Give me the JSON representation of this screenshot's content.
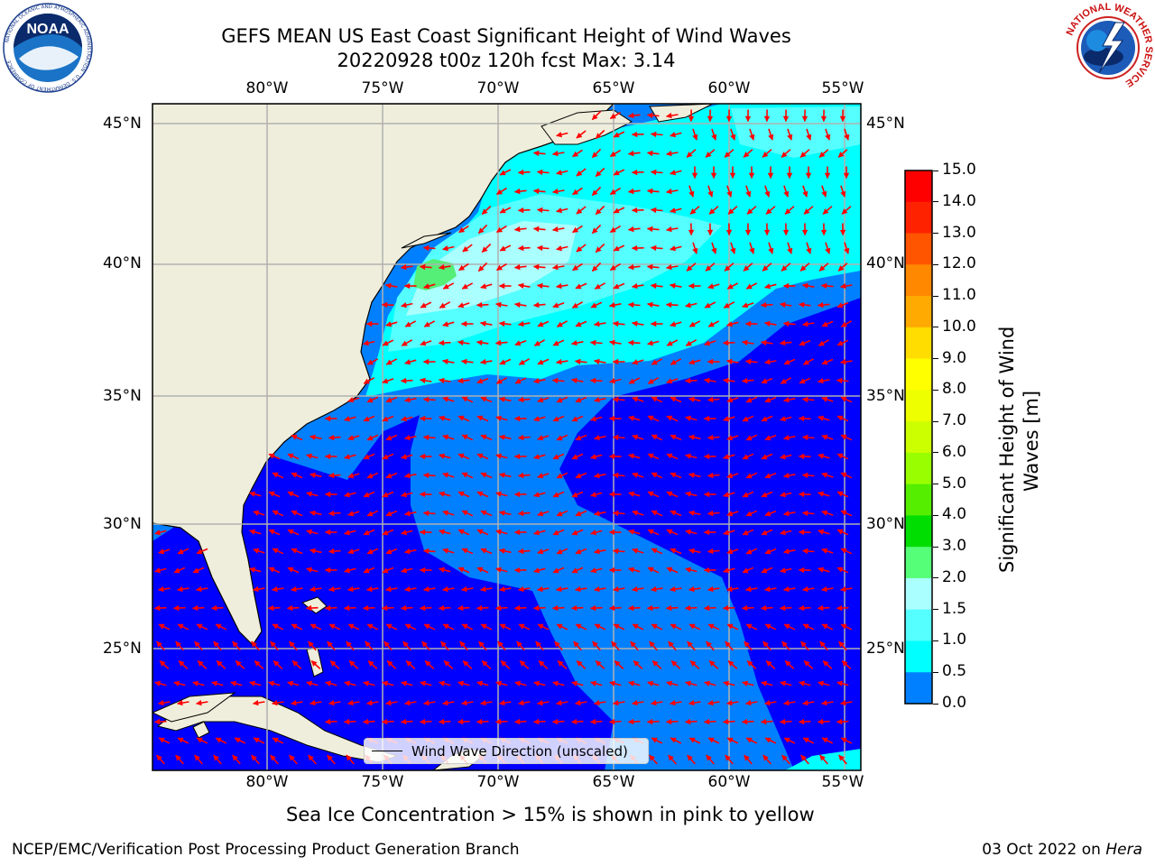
{
  "title": {
    "line1": "GEFS MEAN US East Coast Significant Height of Wind Waves",
    "line2": "20220928 t00z 120h fcst   Max: 3.14"
  },
  "map": {
    "lon_ticks": [
      "80°W",
      "75°W",
      "70°W",
      "65°W",
      "60°W",
      "55°W"
    ],
    "lat_ticks": [
      "45°N",
      "40°N",
      "35°N",
      "30°N",
      "25°N"
    ],
    "extent": {
      "lon": [
        -85,
        -54.3
      ],
      "lat": [
        20.5,
        45.9
      ]
    },
    "grid": true,
    "colors": {
      "land": "#efeedc",
      "ocean_0": "#0000ff",
      "ocean_05": "#0080ff",
      "ocean_1": "#00ffff",
      "ocean_15": "#55ffff",
      "ocean_2": "#aaffff",
      "ocean_3": "#55ee77",
      "arrow": "#ff0000",
      "grid": "#b0b0b0"
    },
    "legend_label": "Wind Wave Direction (unscaled)"
  },
  "colorbar": {
    "label_line1": "Significant Height of Wind",
    "label_line2": "Waves [m]",
    "ticks": [
      "15.0",
      "14.0",
      "13.0",
      "12.0",
      "11.0",
      "10.0",
      "9.0",
      "8.0",
      "7.0",
      "6.0",
      "5.0",
      "4.0",
      "3.0",
      "2.0",
      "1.5",
      "1.0",
      "0.5",
      "0.0"
    ],
    "colors": [
      "#ff0000",
      "#ff2200",
      "#ff5500",
      "#ff8800",
      "#ffaa00",
      "#ffdd00",
      "#ffff00",
      "#eeff00",
      "#ccff00",
      "#99ff00",
      "#55ee00",
      "#00dd00",
      "#55ff77",
      "#aaffff",
      "#55ffff",
      "#00ffff",
      "#0080ff",
      "#0000ff"
    ]
  },
  "notes": {
    "sea_ice": "Sea Ice Concentration > 15% is shown in pink to yellow"
  },
  "footer": {
    "left": "NCEP/EMC/Verification Post Processing Product Generation Branch",
    "date": "03 Oct 2022 on ",
    "host": "Hera"
  },
  "logos": {
    "noaa": "NOAA",
    "nws_ring": "NATIONAL WEATHER SERVICE"
  }
}
